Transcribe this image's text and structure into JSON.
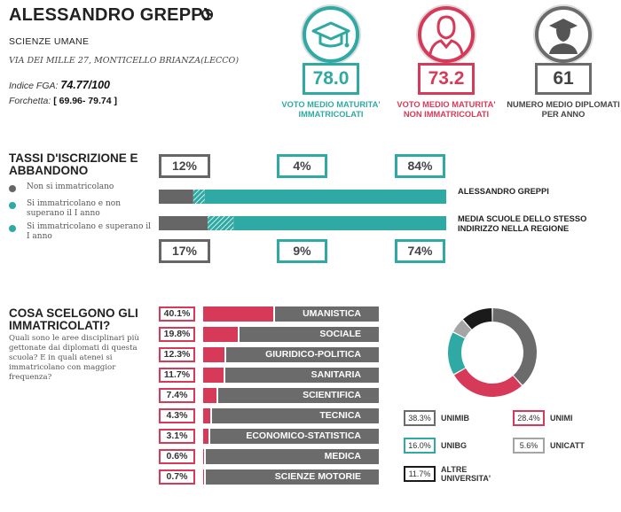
{
  "school": {
    "name": "ALESSANDRO GREPPI",
    "type": "SCIENZE UMANE",
    "address": "VIA DEI MILLE 27, MONTICELLO BRIANZA(LECCO)",
    "fga_label": "Indice FGA:",
    "fga_value": "74.77/100",
    "fork_label": "Forchetta:",
    "fork_value": "[ 69.96- 79.74 ]",
    "globe_icon": "globe-icon"
  },
  "stats": [
    {
      "value": "78.0",
      "label": "VOTO MEDIO MATURITA' IMMATRICOLATI",
      "color": "#2fa9a3",
      "icon": "graduation-cap-icon"
    },
    {
      "value": "73.2",
      "label": "VOTO MEDIO MATURITA' NON IMMATRICOLATI",
      "color": "#d73a58",
      "icon": "person-icon"
    },
    {
      "value": "61",
      "label": "NUMERO MEDIO DIPLOMATI PER ANNO",
      "color": "#6b6b6b",
      "icon": "graduate-person-icon"
    }
  ],
  "enrollment": {
    "title": "TASSI D'ISCRIZIONE E ABBANDONO",
    "legend": [
      {
        "text": "Non si immatricolano",
        "color": "#666666"
      },
      {
        "text": "Si immatricolano e non superano il I anno",
        "color": "#2fa9a3"
      },
      {
        "text": "Si immatricolano e superano il I anno",
        "color": "#2fa9a3"
      }
    ],
    "school_row": {
      "label": "ALESSANDRO GREPPI",
      "values": [
        "12%",
        "4%",
        "84%"
      ],
      "shares": [
        12,
        4,
        84
      ]
    },
    "region_row": {
      "label": "MEDIA SCUOLE DELLO STESSO INDIRIZZO NELLA REGIONE",
      "values": [
        "17%",
        "9%",
        "74%"
      ],
      "shares": [
        17,
        9,
        74
      ]
    }
  },
  "choices": {
    "title": "COSA SCELGONO GLI IMMATRICOLATI?",
    "question": "Quali sono le aree disciplinari più gettonate dai diplomati di questa scuola? E in quali atenei si immatricolano con maggior frequenza?",
    "areas": [
      {
        "pct": "40.1%",
        "name": "UMANISTICA",
        "share": 40.1
      },
      {
        "pct": "19.8%",
        "name": "SOCIALE",
        "share": 19.8
      },
      {
        "pct": "12.3%",
        "name": "GIURIDICO-POLITICA",
        "share": 12.3
      },
      {
        "pct": "11.7%",
        "name": "SANITARIA",
        "share": 11.7
      },
      {
        "pct": "7.4%",
        "name": "SCIENTIFICA",
        "share": 7.4
      },
      {
        "pct": "4.3%",
        "name": "TECNICA",
        "share": 4.3
      },
      {
        "pct": "3.1%",
        "name": "ECONOMICO-STATISTICA",
        "share": 3.1
      },
      {
        "pct": "0.6%",
        "name": "MEDICA",
        "share": 0.6
      },
      {
        "pct": "0.7%",
        "name": "SCIENZE MOTORIE",
        "share": 0.7
      }
    ],
    "universities": [
      {
        "pct": "38.3%",
        "name": "UNIMIB",
        "share": 38.3,
        "color": "#6b6b6b"
      },
      {
        "pct": "28.4%",
        "name": "UNIMI",
        "share": 28.4,
        "color": "#d73a58"
      },
      {
        "pct": "16.0%",
        "name": "UNIBG",
        "share": 16.0,
        "color": "#2fa9a3"
      },
      {
        "pct": "5.6%",
        "name": "UNICATT",
        "share": 5.6,
        "color": "#a5a5a5"
      },
      {
        "pct": "11.7%",
        "name": "ALTRE UNIVERSITA'",
        "share": 11.7,
        "color": "#1a1a1a"
      }
    ]
  }
}
